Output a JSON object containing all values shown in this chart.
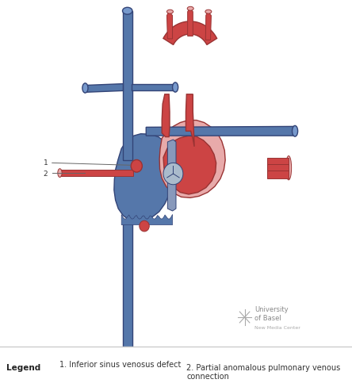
{
  "bg_color": "#ffffff",
  "blue": "#5577aa",
  "blue_light": "#7799cc",
  "blue_mid": "#4a6fa5",
  "red": "#cc4444",
  "red_light": "#e8aaaa",
  "red_mid": "#dd6666",
  "outline_blue": "#334477",
  "outline_red": "#993333",
  "gray_line": "#666666",
  "label1": "1. Inferior sinus venosus defect",
  "label2": "2. Partial anomalous pulmonary venous\nconnection",
  "legend_title": "Legend",
  "logo_text": "University\nof Basel",
  "logo_sub": "New Media Center",
  "separator_color": "#cccccc",
  "figw": 4.44,
  "figh": 4.89,
  "dpi": 100
}
